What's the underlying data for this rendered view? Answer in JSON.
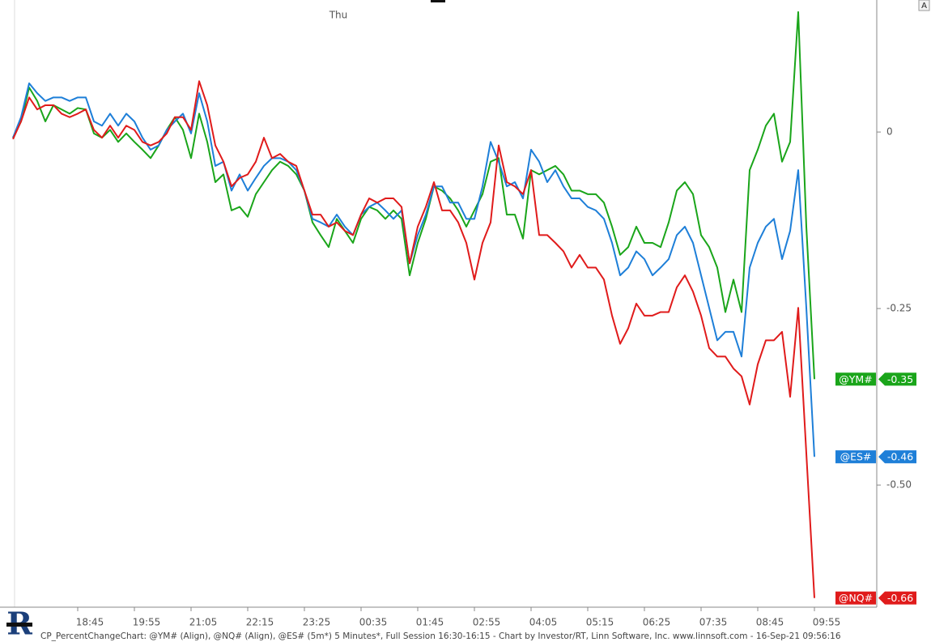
{
  "chart_data": {
    "type": "line",
    "annotation": "Thu",
    "caption": "CP_PercentChangeChart: @YM# (Align), @NQ# (Align), @ES# (5m*) 5 Minutes*, Full Session 16:30-16:15 - Chart by Investor/RT, Linn Software, Inc. www.linnsoft.com - 16-Sep-21 09:56:16",
    "categories": [
      null,
      null,
      null,
      null,
      null,
      null,
      null,
      null,
      "18:45",
      null,
      null,
      null,
      null,
      null,
      null,
      "19:55",
      null,
      null,
      null,
      null,
      null,
      null,
      "21:05",
      null,
      null,
      null,
      null,
      null,
      null,
      "22:15",
      null,
      null,
      null,
      null,
      null,
      null,
      "23:25",
      null,
      null,
      null,
      null,
      null,
      null,
      "00:35",
      null,
      null,
      null,
      null,
      null,
      null,
      "01:45",
      null,
      null,
      null,
      null,
      null,
      null,
      "02:55",
      null,
      null,
      null,
      null,
      null,
      null,
      "04:05",
      null,
      null,
      null,
      null,
      null,
      null,
      "05:15",
      null,
      null,
      null,
      null,
      null,
      null,
      "06:25",
      null,
      null,
      null,
      null,
      null,
      null,
      "07:35",
      null,
      null,
      null,
      null,
      null,
      null,
      "08:45",
      null,
      null,
      null,
      null,
      null,
      null,
      "09:55"
    ],
    "series": [
      {
        "name": "@YM#",
        "color": "#1aa51a",
        "values": [
          -0.008,
          0.015,
          0.063,
          0.044,
          0.015,
          0.038,
          0.032,
          0.026,
          0.034,
          0.032,
          -0.002,
          -0.008,
          0.003,
          -0.014,
          -0.002,
          -0.014,
          -0.025,
          -0.037,
          -0.019,
          0.003,
          0.021,
          0.003,
          -0.037,
          0.026,
          -0.014,
          -0.071,
          -0.06,
          -0.111,
          -0.106,
          -0.12,
          -0.088,
          -0.071,
          -0.054,
          -0.042,
          -0.048,
          -0.06,
          -0.083,
          -0.128,
          -0.146,
          -0.163,
          -0.123,
          -0.14,
          -0.157,
          -0.123,
          -0.106,
          -0.111,
          -0.123,
          -0.111,
          -0.123,
          -0.203,
          -0.157,
          -0.123,
          -0.077,
          -0.083,
          -0.094,
          -0.111,
          -0.134,
          -0.111,
          -0.088,
          -0.042,
          -0.037,
          -0.117,
          -0.117,
          -0.151,
          -0.054,
          -0.06,
          -0.054,
          -0.048,
          -0.06,
          -0.083,
          -0.083,
          -0.088,
          -0.088,
          -0.1,
          -0.134,
          -0.174,
          -0.163,
          -0.134,
          -0.157,
          -0.157,
          -0.163,
          -0.128,
          -0.083,
          -0.071,
          -0.088,
          -0.146,
          -0.163,
          -0.192,
          -0.255,
          -0.209,
          -0.255,
          -0.054,
          -0.025,
          0.009,
          0.026,
          -0.042,
          -0.014,
          0.17,
          -0.134,
          -0.35
        ]
      },
      {
        "name": "@ES#",
        "color": "#1e7fd8",
        "values": [
          -0.008,
          0.021,
          0.069,
          0.055,
          0.044,
          0.049,
          0.049,
          0.044,
          0.049,
          0.049,
          0.015,
          0.009,
          0.026,
          0.009,
          0.026,
          0.015,
          -0.008,
          -0.025,
          -0.019,
          0.003,
          0.015,
          0.026,
          -0.002,
          0.055,
          0.015,
          -0.048,
          -0.042,
          -0.083,
          -0.06,
          -0.083,
          -0.065,
          -0.048,
          -0.037,
          -0.037,
          -0.042,
          -0.054,
          -0.083,
          -0.123,
          -0.128,
          -0.134,
          -0.117,
          -0.134,
          -0.146,
          -0.117,
          -0.106,
          -0.1,
          -0.111,
          -0.123,
          -0.111,
          -0.186,
          -0.146,
          -0.117,
          -0.077,
          -0.077,
          -0.1,
          -0.1,
          -0.123,
          -0.123,
          -0.077,
          -0.014,
          -0.042,
          -0.077,
          -0.071,
          -0.094,
          -0.025,
          -0.042,
          -0.071,
          -0.054,
          -0.077,
          -0.094,
          -0.094,
          -0.106,
          -0.111,
          -0.123,
          -0.157,
          -0.203,
          -0.192,
          -0.169,
          -0.18,
          -0.203,
          -0.192,
          -0.18,
          -0.146,
          -0.134,
          -0.157,
          -0.203,
          -0.249,
          -0.295,
          -0.283,
          -0.283,
          -0.318,
          -0.192,
          -0.157,
          -0.134,
          -0.123,
          -0.18,
          -0.14,
          -0.054,
          -0.249,
          -0.46
        ]
      },
      {
        "name": "@NQ#",
        "color": "#e01b1b",
        "values": [
          -0.01,
          0.015,
          0.049,
          0.032,
          0.038,
          0.038,
          0.026,
          0.021,
          0.026,
          0.032,
          0.003,
          -0.008,
          0.009,
          -0.008,
          0.009,
          0.003,
          -0.014,
          -0.019,
          -0.014,
          -0.002,
          0.021,
          0.021,
          0.003,
          0.072,
          0.038,
          -0.019,
          -0.042,
          -0.077,
          -0.065,
          -0.06,
          -0.042,
          -0.008,
          -0.037,
          -0.031,
          -0.042,
          -0.048,
          -0.083,
          -0.117,
          -0.117,
          -0.134,
          -0.128,
          -0.14,
          -0.146,
          -0.117,
          -0.094,
          -0.1,
          -0.094,
          -0.094,
          -0.106,
          -0.186,
          -0.134,
          -0.106,
          -0.071,
          -0.111,
          -0.111,
          -0.128,
          -0.157,
          -0.209,
          -0.157,
          -0.128,
          -0.019,
          -0.071,
          -0.077,
          -0.088,
          -0.054,
          -0.146,
          -0.146,
          -0.157,
          -0.169,
          -0.192,
          -0.174,
          -0.192,
          -0.192,
          -0.209,
          -0.26,
          -0.3,
          -0.278,
          -0.243,
          -0.26,
          -0.26,
          -0.255,
          -0.255,
          -0.22,
          -0.203,
          -0.226,
          -0.26,
          -0.306,
          -0.318,
          -0.318,
          -0.335,
          -0.346,
          -0.386,
          -0.329,
          -0.295,
          -0.295,
          -0.283,
          -0.375,
          -0.249,
          -0.455,
          -0.66
        ]
      }
    ],
    "ylim": [
      -0.673,
      0.187
    ],
    "yticks": [
      0,
      -0.25,
      {
        "value": -0.5,
        "label": "-0.50"
      }
    ]
  },
  "toolbar": {
    "button": "A"
  }
}
